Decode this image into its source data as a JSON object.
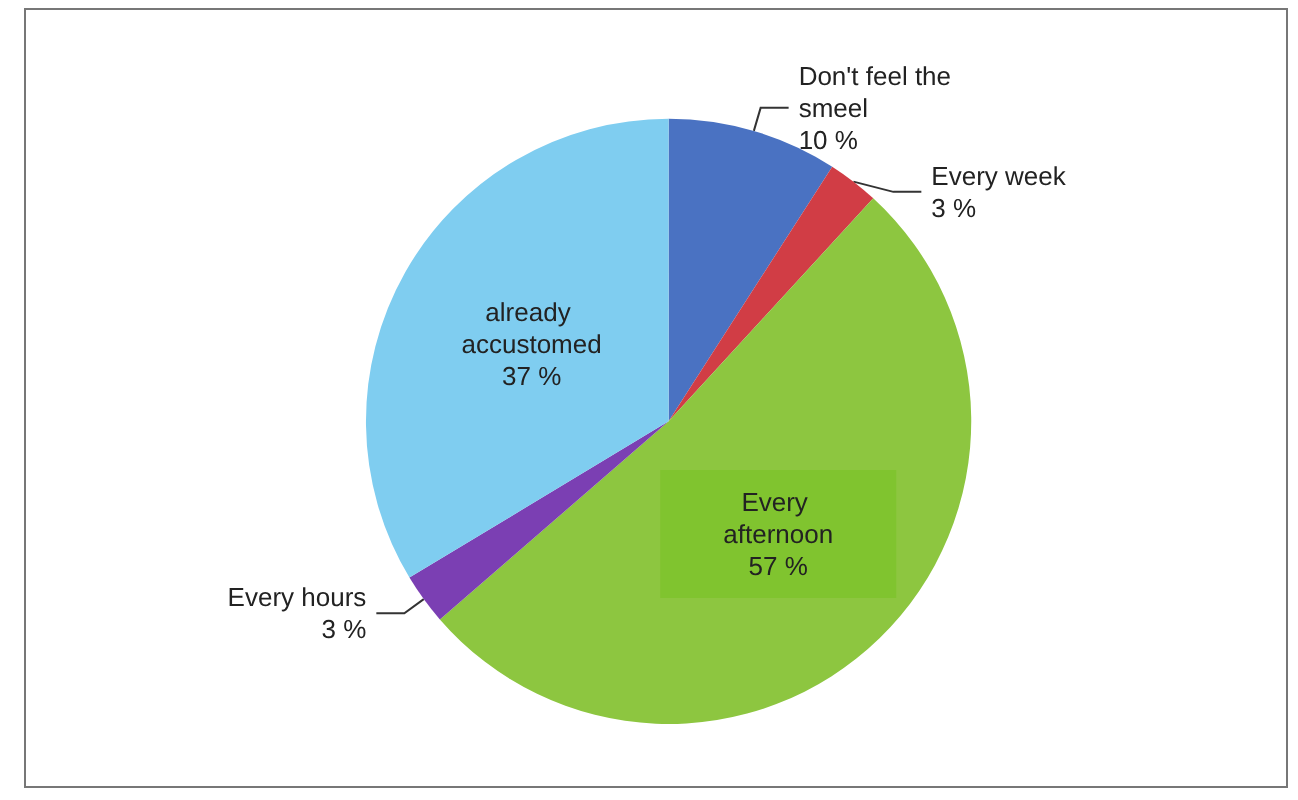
{
  "chart_data": {
    "type": "pie",
    "categories": [
      "Don't feel the smeel",
      "Every week",
      "Every afternoon",
      "Every hours",
      "already accustomed"
    ],
    "values": [
      10,
      3,
      57,
      3,
      37
    ],
    "value_labels": [
      "10 %",
      "3 %",
      "57 %",
      "3 %",
      "37 %"
    ],
    "colors": [
      "#4a72c2",
      "#d13d45",
      "#8dc640",
      "#7b3fb3",
      "#7fcdf0"
    ],
    "legend": false
  }
}
